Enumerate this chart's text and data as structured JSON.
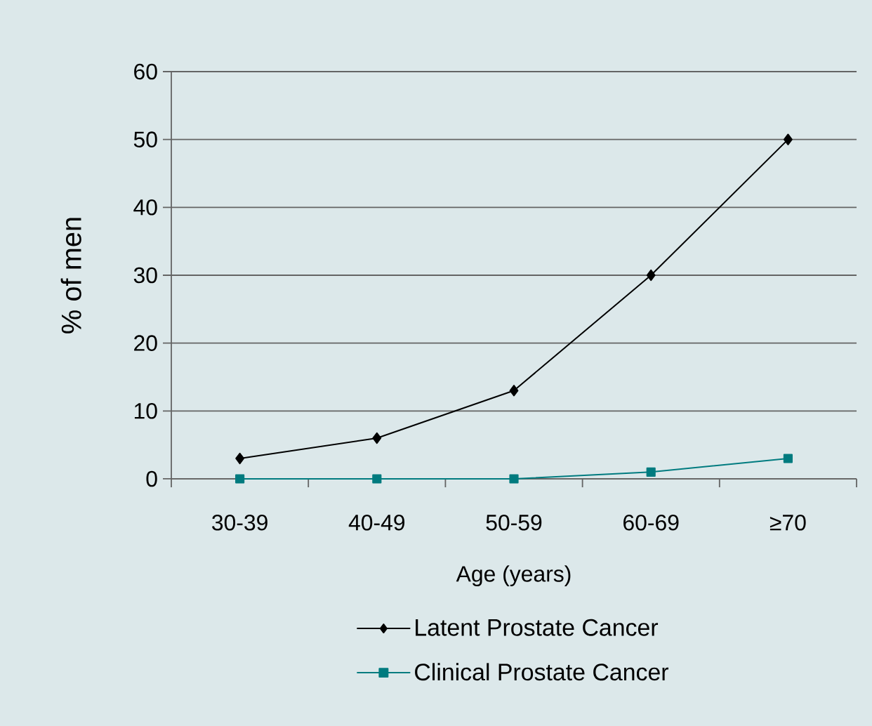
{
  "chart_data": {
    "type": "line",
    "xlabel": "Age (years)",
    "ylabel": "% of men",
    "categories": [
      "30-39",
      "40-49",
      "50-59",
      "60-69",
      "≥70"
    ],
    "series": [
      {
        "name": "Latent Prostate Cancer",
        "color": "#000000",
        "marker": "diamond",
        "values": [
          3,
          6,
          13,
          30,
          50
        ]
      },
      {
        "name": "Clinical Prostate Cancer",
        "color": "#007b7f",
        "marker": "square",
        "values": [
          0,
          0,
          0,
          1,
          3
        ]
      }
    ],
    "ylim": [
      0,
      60
    ],
    "yticks": [
      0,
      10,
      20,
      30,
      40,
      50,
      60
    ],
    "grid": "y",
    "legend": "bottom"
  }
}
